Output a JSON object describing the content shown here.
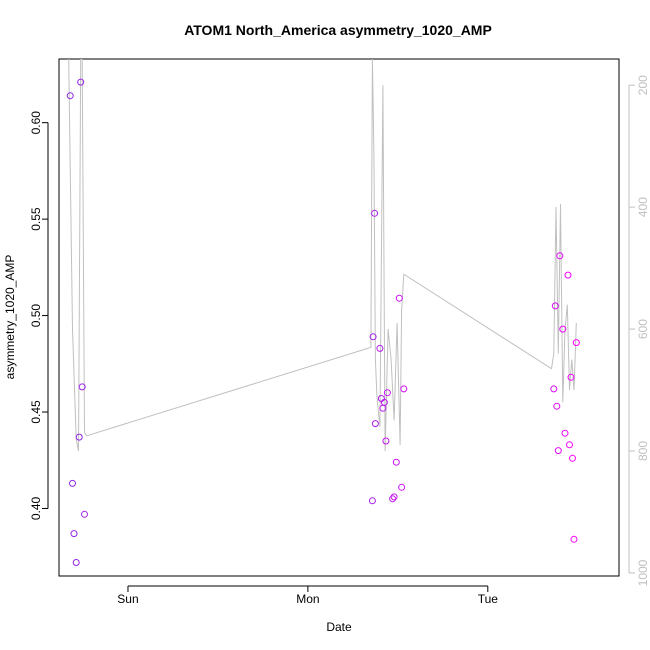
{
  "chart_data": {
    "type": "scatter",
    "title": "ATOM1 North_America asymmetry_1020_AMP",
    "xlabel": "Date",
    "ylabel": "asymmetry_1020_AMP",
    "x_ticks": [
      {
        "label": "Sun",
        "value": 24
      },
      {
        "label": "Mon",
        "value": 48
      },
      {
        "label": "Tue",
        "value": 72
      }
    ],
    "xlim": [
      14.8,
      89.5
    ],
    "ylim": [
      0.365,
      0.633
    ],
    "y_ticks": [
      "0.40",
      "0.45",
      "0.50",
      "0.55",
      "0.60"
    ],
    "y2lim": [
      1005,
      157
    ],
    "y2_ticks": [
      "200",
      "400",
      "600",
      "800",
      "1000"
    ],
    "grid": false,
    "colors": {
      "points_start": "#8a2be2",
      "points_end": "#ff00ff",
      "line": "#c0c0c0",
      "right_axis": "#c0c0c0"
    },
    "series": [
      {
        "type": "points",
        "x": [
          16.3,
          16.6,
          16.8,
          17.1,
          17.5,
          17.7,
          17.9,
          18.2,
          56.6,
          56.7,
          56.9,
          57.0,
          57.6,
          57.8,
          58.0,
          58.2,
          58.4,
          58.6,
          59.3,
          59.5,
          59.8,
          60.2,
          60.5,
          60.8,
          80.8,
          81.0,
          81.2,
          81.4,
          81.6,
          82.0,
          82.3,
          82.7,
          82.9,
          83.1,
          83.3,
          83.5,
          83.8
        ],
        "y": [
          0.614,
          0.413,
          0.387,
          0.372,
          0.437,
          0.621,
          0.463,
          0.397,
          0.404,
          0.489,
          0.553,
          0.444,
          0.483,
          0.457,
          0.452,
          0.455,
          0.435,
          0.46,
          0.405,
          0.406,
          0.424,
          0.509,
          0.411,
          0.462,
          0.462,
          0.505,
          0.453,
          0.43,
          0.531,
          0.493,
          0.439,
          0.521,
          0.433,
          0.468,
          0.426,
          0.384,
          0.486
        ]
      },
      {
        "type": "line",
        "axis": "right",
        "x": [
          16.1,
          16.6,
          17.1,
          17.4,
          17.7,
          17.9,
          18.2,
          18.5,
          56.4,
          56.6,
          56.8,
          57.0,
          57.2,
          57.6,
          58.0,
          58.3,
          58.7,
          59.1,
          59.5,
          59.9,
          60.3,
          60.5,
          60.8,
          80.5,
          80.8,
          81.1,
          81.4,
          81.7,
          82.0,
          82.3,
          82.6,
          82.9,
          83.2,
          83.5,
          83.8
        ],
        "y": [
          157,
          600,
          780,
          800,
          157,
          157,
          770,
          775,
          630,
          157,
          310,
          650,
          710,
          760,
          200,
          800,
          600,
          650,
          750,
          590,
          790,
          570,
          510,
          665,
          640,
          400,
          640,
          395,
          720,
          600,
          560,
          700,
          650,
          700,
          590
        ]
      }
    ]
  }
}
